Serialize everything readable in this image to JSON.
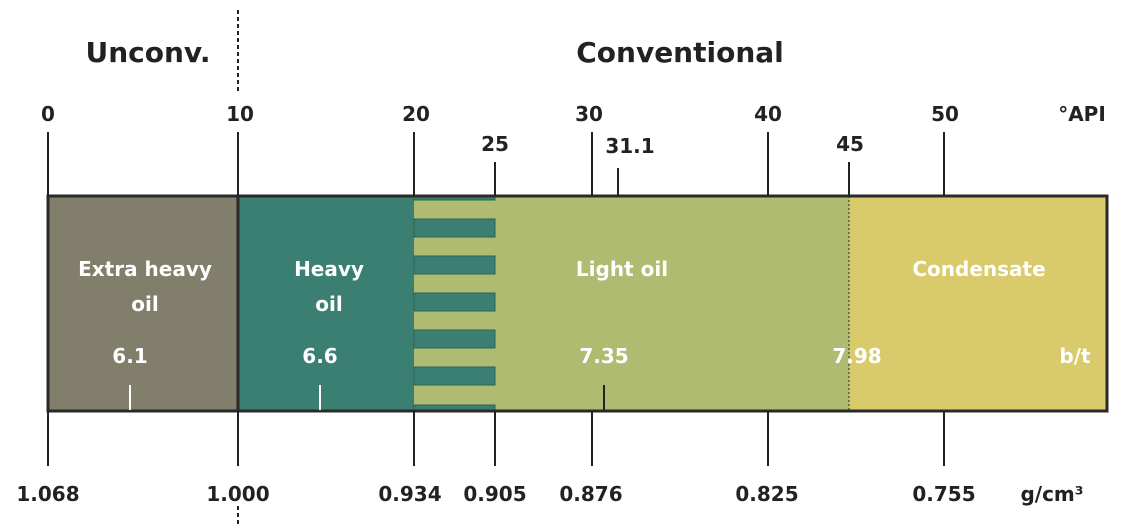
{
  "header": {
    "left": "Unconv.",
    "right": "Conventional"
  },
  "api_scale": {
    "unit": "°API",
    "ticks": [
      {
        "label": "0"
      },
      {
        "label": "10"
      },
      {
        "label": "20"
      },
      {
        "label": "25"
      },
      {
        "label": "30"
      },
      {
        "label": "31.1"
      },
      {
        "label": "40"
      },
      {
        "label": "45"
      },
      {
        "label": "50"
      }
    ]
  },
  "density_scale": {
    "unit": "g/cm³",
    "ticks": [
      {
        "label": "1.068"
      },
      {
        "label": "1.000"
      },
      {
        "label": "0.934"
      },
      {
        "label": "0.905"
      },
      {
        "label": "0.876"
      },
      {
        "label": "0.825"
      },
      {
        "label": "0.755"
      }
    ]
  },
  "categories": [
    {
      "name_line1": "Extra heavy",
      "name_line2": "oil",
      "bt": "6.1",
      "color": "#817e6b"
    },
    {
      "name_line1": "Heavy",
      "name_line2": "oil",
      "bt": "6.6",
      "color": "#3a7f71"
    },
    {
      "name_line1": "Light oil",
      "name_line2": "",
      "bt": "7.35",
      "color": "#aebb71"
    },
    {
      "name_line1": "Condensate",
      "name_line2": "",
      "bt": "7.98",
      "color": "#d9ca6c"
    }
  ],
  "bt_unit": "b/t"
}
